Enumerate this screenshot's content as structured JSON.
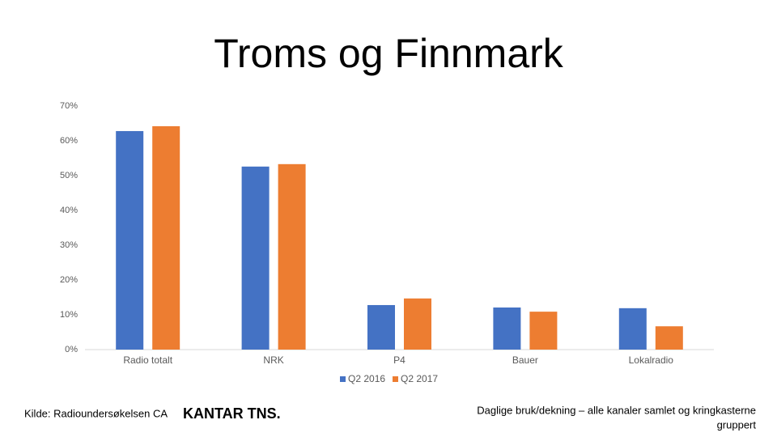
{
  "chart_data": {
    "type": "bar",
    "title": "Troms og Finnmark",
    "categories": [
      "Radio totalt",
      "NRK",
      "P4",
      "Bauer",
      "Lokalradio"
    ],
    "series": [
      {
        "name": "Q2 2016",
        "color": "#4472c4",
        "values": [
          62.8,
          52.6,
          12.8,
          12.1,
          11.9
        ]
      },
      {
        "name": "Q2 2017",
        "color": "#ed7d31",
        "values": [
          64.2,
          53.3,
          14.7,
          10.9,
          6.7
        ]
      }
    ],
    "ylim": [
      0,
      70
    ],
    "yticks": [
      {
        "value": 0,
        "label": "0%"
      },
      {
        "value": 10,
        "label": "10%"
      },
      {
        "value": 20,
        "label": "20%"
      },
      {
        "value": 30,
        "label": "30%"
      },
      {
        "value": 40,
        "label": "40%"
      },
      {
        "value": 50,
        "label": "50%"
      },
      {
        "value": 60,
        "label": "60%"
      },
      {
        "value": 70,
        "label": "70%"
      }
    ],
    "grid": false,
    "legend": "bottom"
  },
  "footer": {
    "source": "Kilde: Radioundersøkelsen CA",
    "logo": "KANTAR TNS.",
    "note_line1": "Daglige bruk/dekning – alle kanaler samlet og kringkasterne",
    "note_line2": "gruppert"
  }
}
